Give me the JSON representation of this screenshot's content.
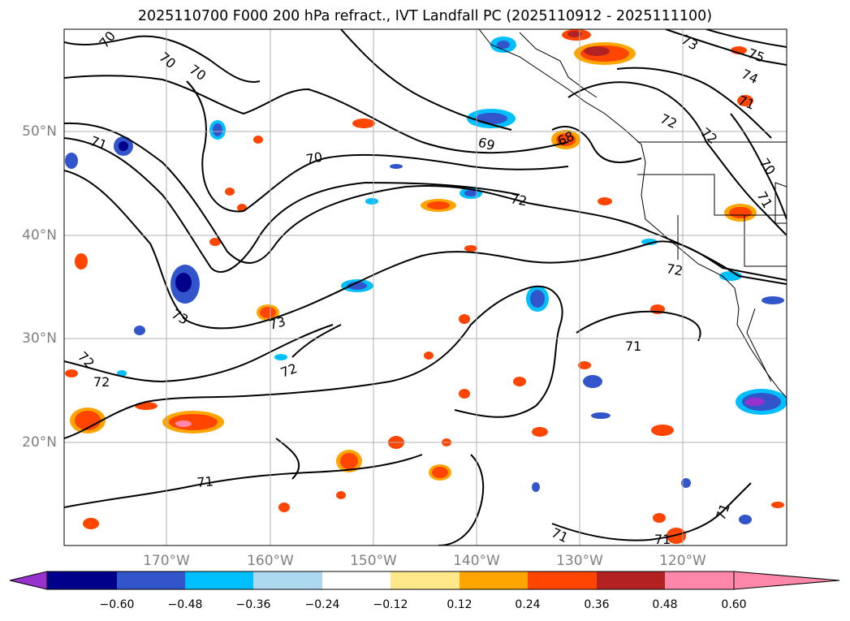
{
  "title": "2025110700 F000 200 hPa refract., IVT Landfall PC (2025110912 - 2025111100)",
  "axes": {
    "lat_labels": [
      "50°N",
      "40°N",
      "30°N",
      "20°N"
    ],
    "lon_labels": [
      "170°W",
      "160°W",
      "150°W",
      "140°W",
      "130°W",
      "120°W"
    ]
  },
  "contour_labels": [
    "70",
    "70",
    "70",
    "71",
    "70",
    "69",
    "68",
    "72",
    "72",
    "73",
    "72",
    "74",
    "75",
    "71",
    "70",
    "71",
    "72",
    "73",
    "73",
    "72",
    "72",
    "72",
    "71",
    "71",
    "71",
    "71",
    "71"
  ],
  "colorbar": {
    "ticks": [
      "−0.60",
      "−0.48",
      "−0.36",
      "−0.24",
      "−0.12",
      "0.12",
      "0.24",
      "0.36",
      "0.48",
      "0.60"
    ],
    "colors": [
      "#9932cc",
      "#00008b",
      "#3355cc",
      "#00bfff",
      "#add8f0",
      "#ffffff",
      "#ffe88a",
      "#ffa500",
      "#ff4500",
      "#b22222",
      "#ff88aa"
    ]
  }
}
